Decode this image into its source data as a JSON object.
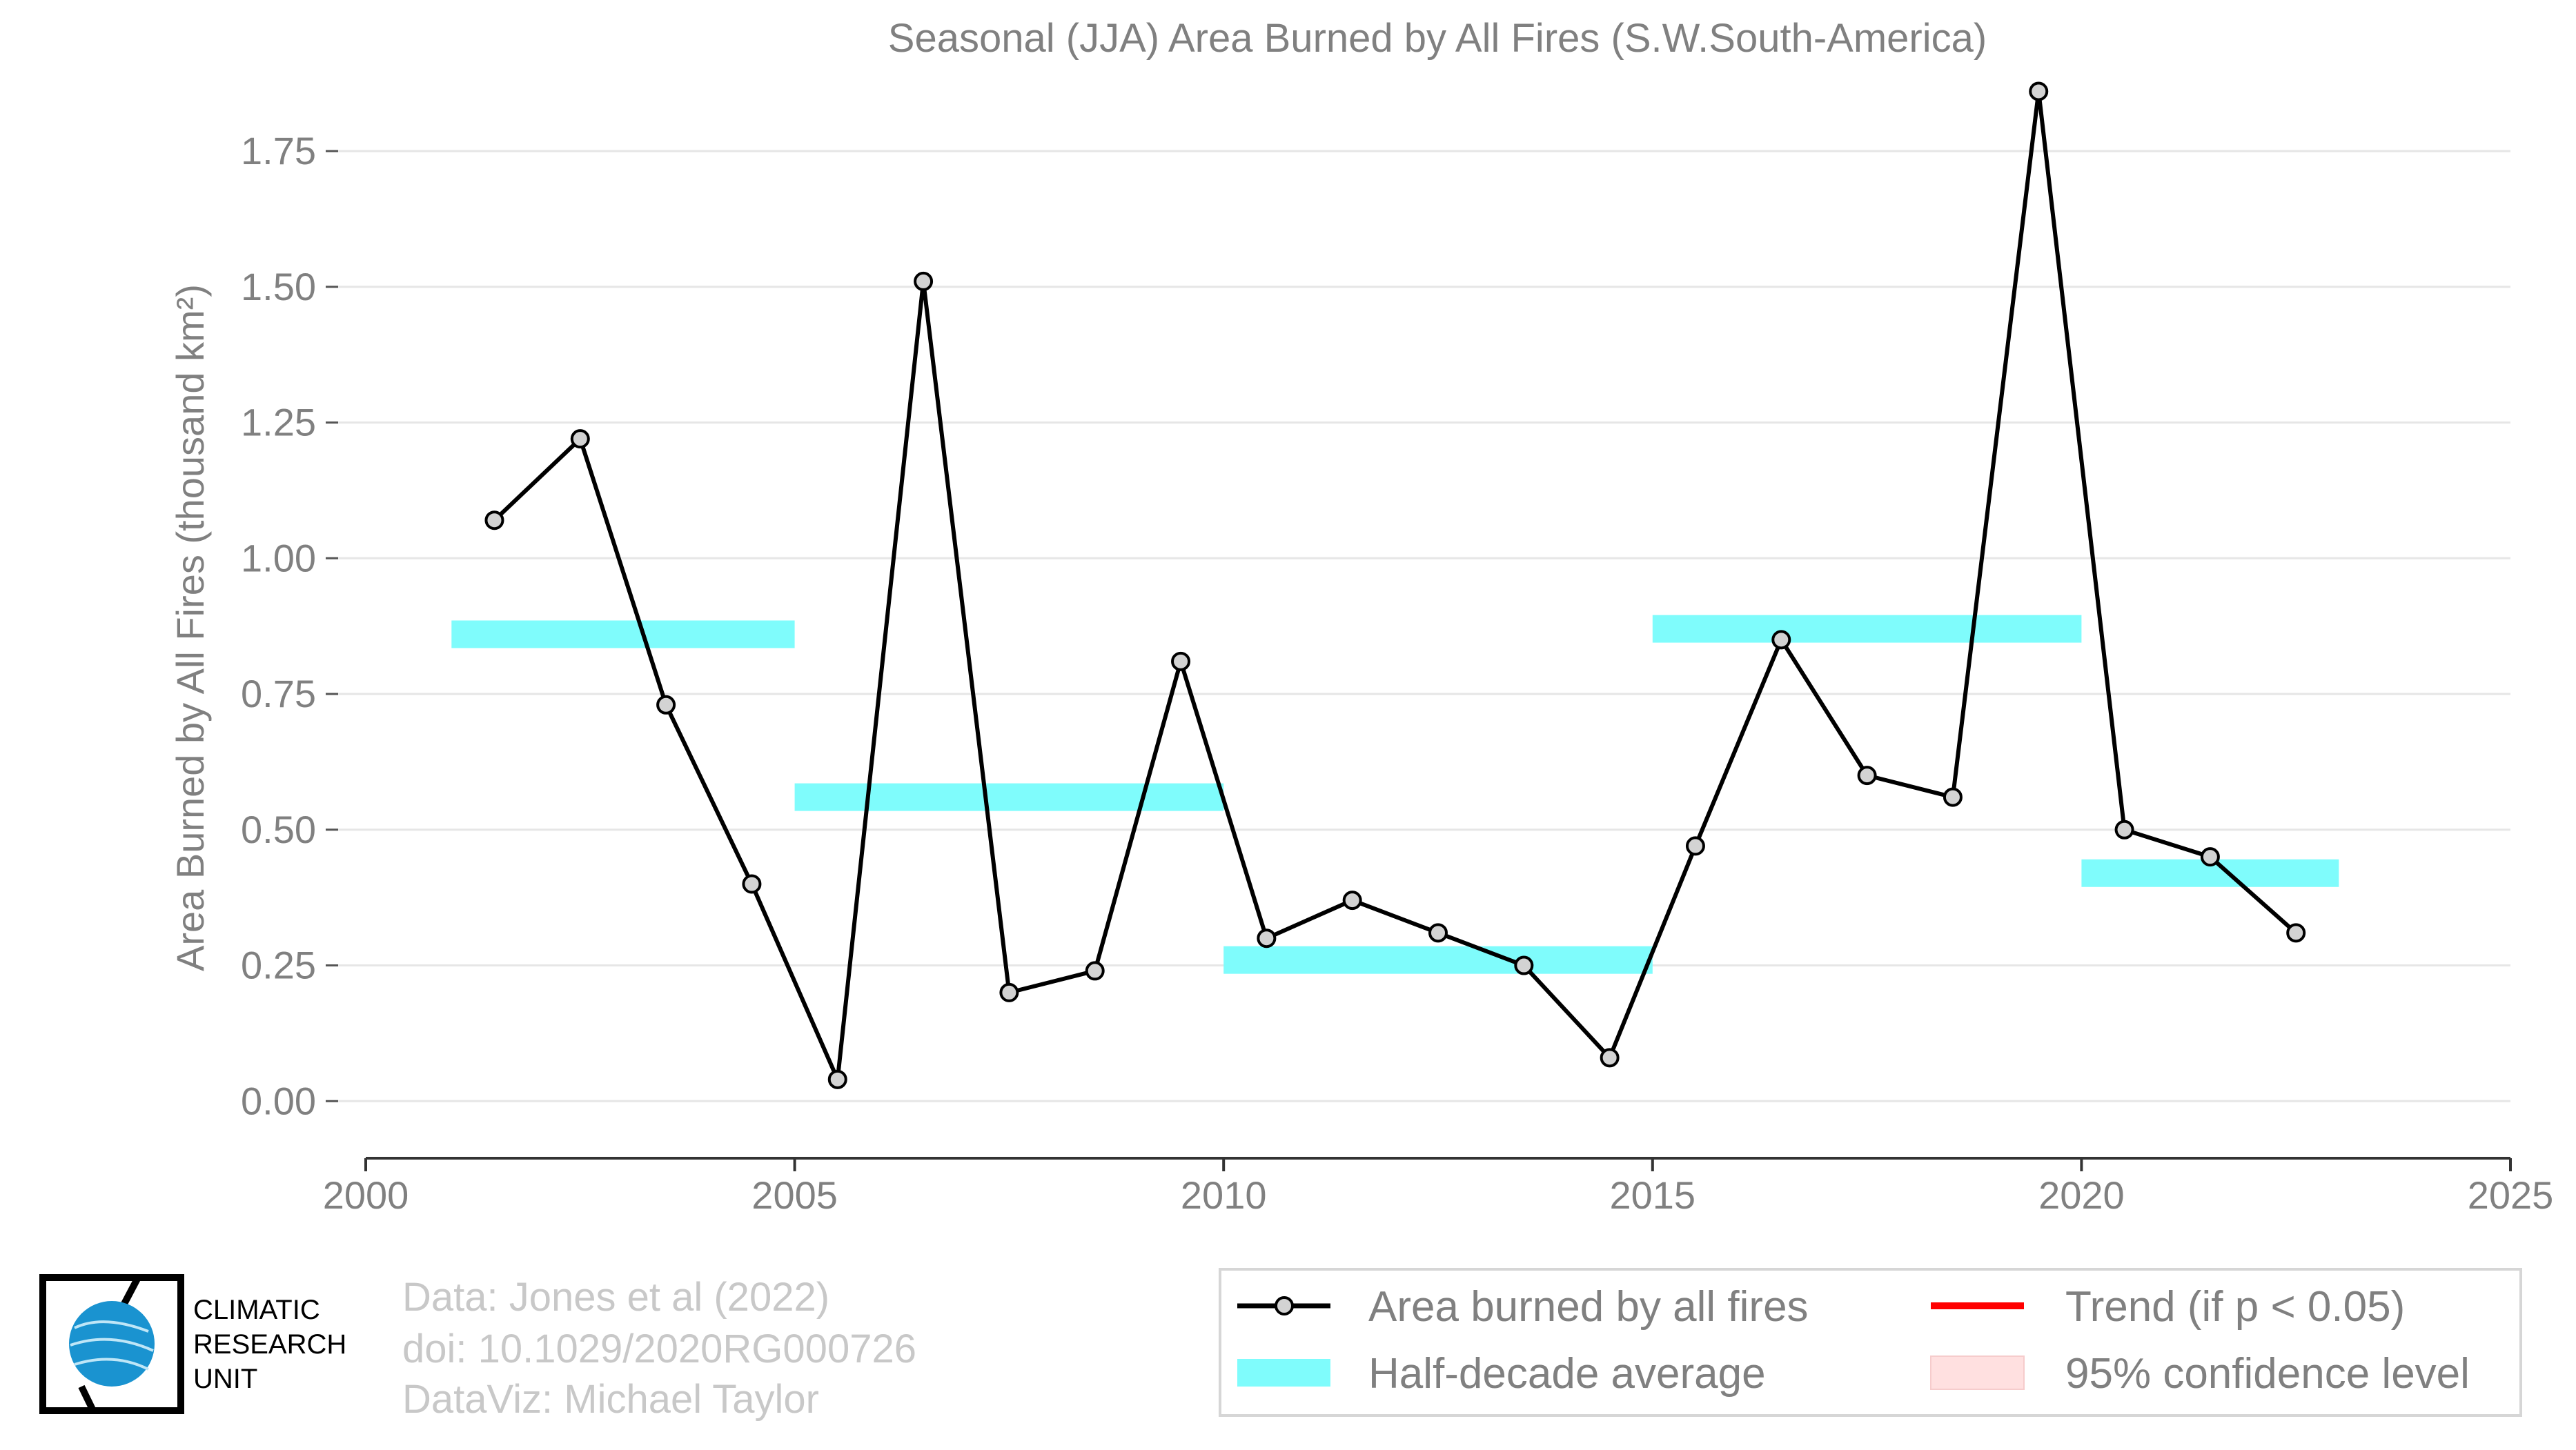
{
  "chart_data": {
    "type": "line",
    "title": "Seasonal (JJA) Area Burned by All Fires (S.W.South-America)",
    "ylabel": "Area Burned by All Fires (thousand km²)",
    "xlim": [
      2000,
      2025
    ],
    "ylim": [
      -0.1,
      1.9
    ],
    "xticks": [
      "2000",
      "2005",
      "2010",
      "2015",
      "2020",
      "2025"
    ],
    "yticks": [
      "0.00",
      "0.25",
      "0.50",
      "0.75",
      "1.00",
      "1.25",
      "1.50",
      "1.75"
    ],
    "grid": true,
    "legend_position": "bottom-right",
    "series": [
      {
        "name": "Area burned by all fires",
        "color": "#000000",
        "x": [
          2001.5,
          2002.5,
          2003.5,
          2004.5,
          2005.5,
          2006.5,
          2007.5,
          2008.5,
          2009.5,
          2010.5,
          2011.5,
          2012.5,
          2013.5,
          2014.5,
          2015.5,
          2016.5,
          2017.5,
          2018.5,
          2019.5,
          2020.5,
          2021.5,
          2022.5
        ],
        "values": [
          1.07,
          1.22,
          0.73,
          0.4,
          0.04,
          1.51,
          0.2,
          0.24,
          0.81,
          0.3,
          0.37,
          0.31,
          0.25,
          0.08,
          0.47,
          0.85,
          0.6,
          0.56,
          1.86,
          0.5,
          0.45,
          0.31
        ]
      }
    ],
    "half_decade_average": {
      "name": "Half-decade average",
      "color": "#7ffcfc",
      "segments": [
        {
          "x_start": 2001,
          "x_end": 2005,
          "value": 0.86
        },
        {
          "x_start": 2005,
          "x_end": 2010,
          "value": 0.56
        },
        {
          "x_start": 2010,
          "x_end": 2015,
          "value": 0.26
        },
        {
          "x_start": 2015,
          "x_end": 2020,
          "value": 0.87
        },
        {
          "x_start": 2020,
          "x_end": 2023,
          "value": 0.42
        }
      ]
    },
    "legend": [
      {
        "label": "Area burned by all fires",
        "kind": "line-marker",
        "color": "#000000"
      },
      {
        "label": "Trend (if p < 0.05)",
        "kind": "line",
        "color": "#ff0000"
      },
      {
        "label": "Half-decade average",
        "kind": "band",
        "color": "#7ffcfc"
      },
      {
        "label": "95% confidence level",
        "kind": "band",
        "color": "#ffe0e0"
      }
    ]
  },
  "credits": {
    "line1": "Data: Jones et al (2022)",
    "line2": "doi: 10.1029/2020RG000726",
    "line3": "DataViz: Michael Taylor"
  },
  "logo": {
    "line1": "CLIMATIC",
    "line2": "RESEARCH",
    "line3": "UNIT"
  }
}
